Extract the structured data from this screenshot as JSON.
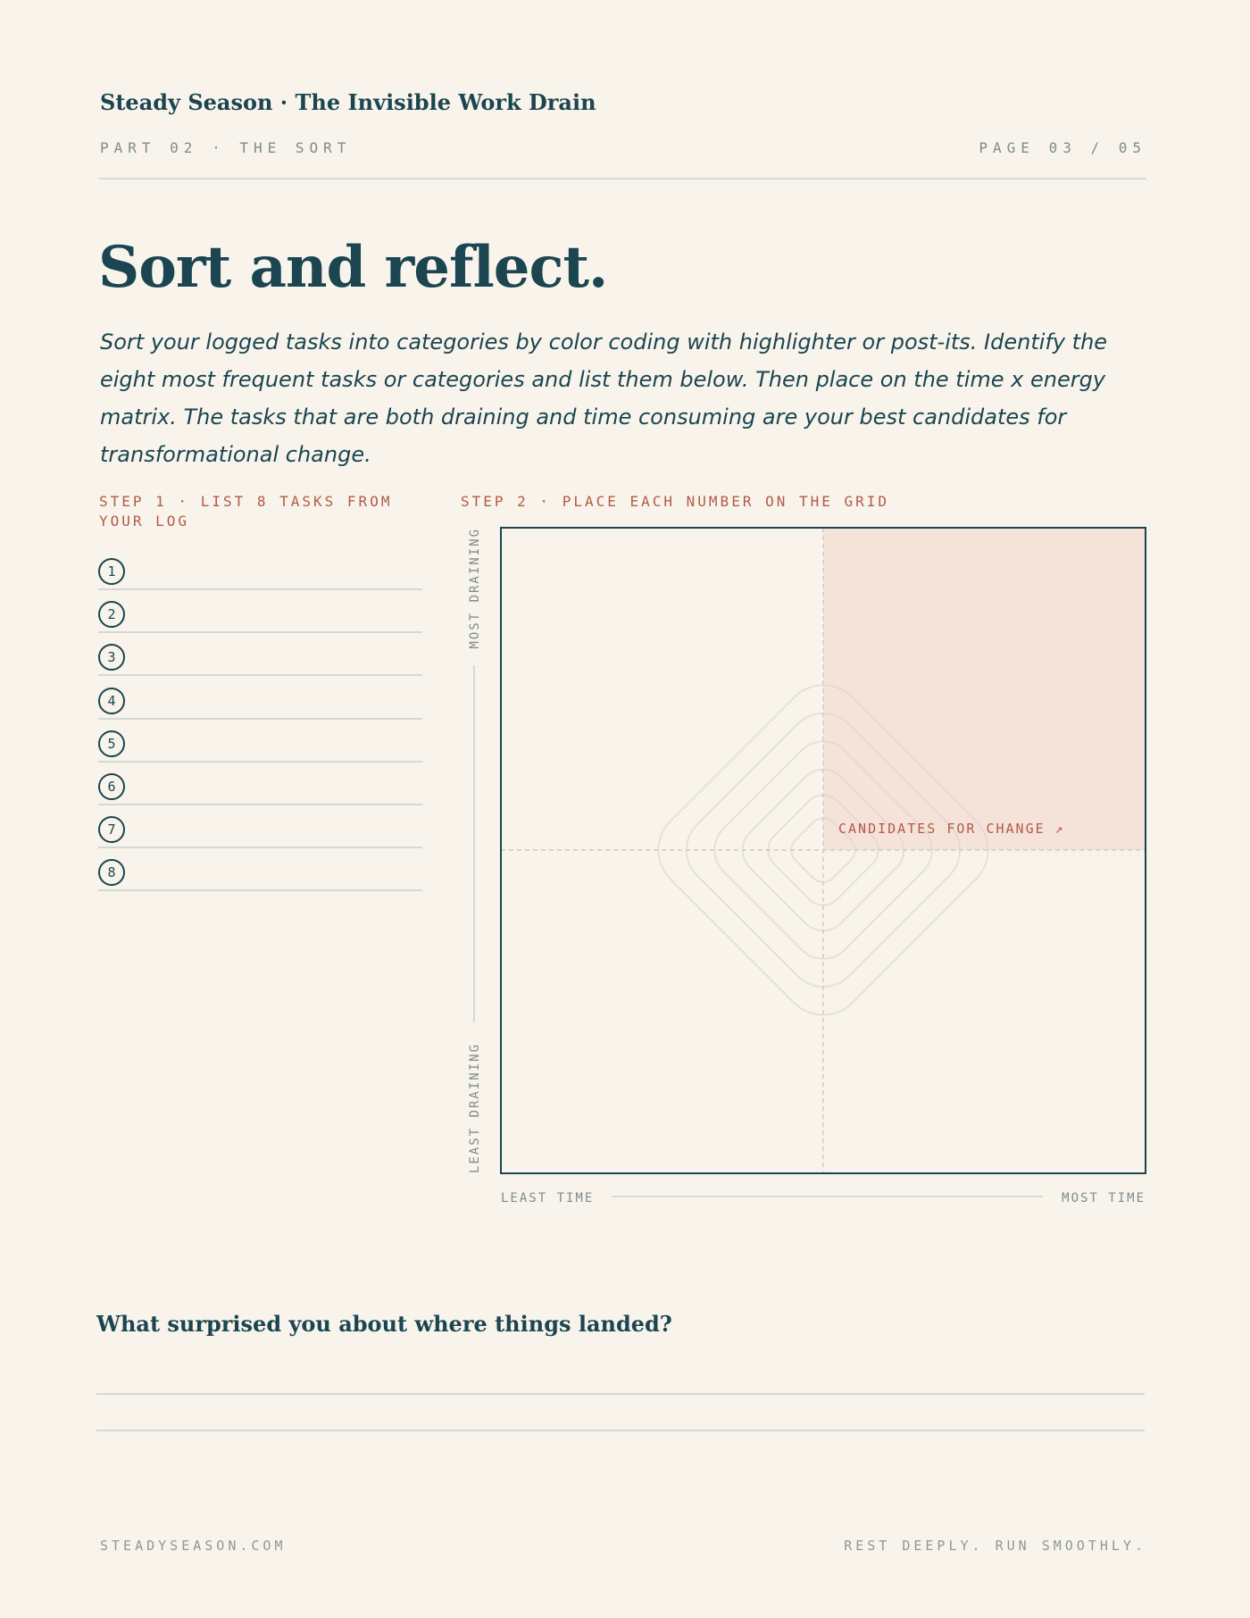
{
  "header": {
    "title": "Steady Season · The Invisible Work Drain",
    "part": "PART 02 · THE SORT",
    "page": "PAGE 03 / 05"
  },
  "heading": "Sort and reflect.",
  "intro": "Sort your logged tasks into categories by color coding with highlighter or post-its. Identify the eight most frequent tasks or categories and list them below. Then place on the time x energy matrix. The tasks that are both draining and time consuming are your best candidates for transformational change.",
  "step1": {
    "label": "STEP 1 · LIST 8 TASKS FROM YOUR LOG",
    "items": [
      "1",
      "2",
      "3",
      "4",
      "5",
      "6",
      "7",
      "8"
    ]
  },
  "step2": {
    "label": "STEP 2 · PLACE EACH NUMBER ON THE GRID"
  },
  "matrix": {
    "y_top": "MOST DRAINING",
    "y_bottom": "LEAST DRAINING",
    "x_left": "LEAST TIME",
    "x_right": "MOST TIME",
    "quadrant_label": "CANDIDATES FOR CHANGE ↗"
  },
  "reflection": {
    "question": "What surprised you about where things landed?"
  },
  "footer": {
    "left": "STEADYSEASON.COM",
    "right": "REST DEEPLY. RUN SMOOTHLY."
  }
}
